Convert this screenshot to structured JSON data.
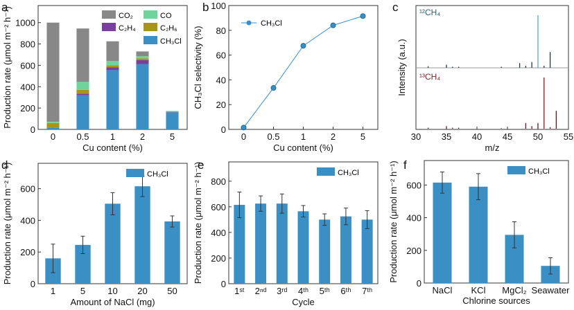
{
  "chart_data": [
    {
      "id": "a",
      "panel_label": "a",
      "type": "bar",
      "stacked": true,
      "categories": [
        "0",
        "0.5",
        "1",
        "2",
        "5"
      ],
      "xlabel": "Cu content (%)",
      "ylabel": "Production rate (μmol m⁻² h⁻¹)",
      "ylim": [
        0,
        1160
      ],
      "yticks": [
        0,
        200,
        400,
        600,
        800,
        1000
      ],
      "legend_position": "top-right",
      "series": [
        {
          "name": "CH₃Cl",
          "color": "#3a8fc4",
          "values": [
            15,
            320,
            555,
            610,
            160
          ]
        },
        {
          "name": "C₂H₄",
          "color": "#7a3f9e",
          "values": [
            0,
            15,
            25,
            40,
            2
          ]
        },
        {
          "name": "C₂H₆",
          "color": "#a89418",
          "values": [
            45,
            35,
            20,
            15,
            3
          ]
        },
        {
          "name": "CO",
          "color": "#6fd39c",
          "values": [
            12,
            75,
            40,
            20,
            8
          ]
        },
        {
          "name": "CO₂",
          "color": "#888888",
          "values": [
            928,
            500,
            185,
            45,
            0
          ]
        }
      ]
    },
    {
      "id": "b",
      "panel_label": "b",
      "type": "line",
      "categories": [
        "0",
        "0.5",
        "1",
        "2",
        "5"
      ],
      "xlabel": "Cu content (%)",
      "ylabel": "CH₃Cl selectivity (%)",
      "ylim": [
        0,
        100
      ],
      "yticks": [
        0,
        20,
        40,
        60,
        80,
        100
      ],
      "legend_position": "top-left",
      "series": [
        {
          "name": "CH₃Cl",
          "color": "#3a8fc4",
          "values": [
            1.5,
            33.5,
            67.5,
            84,
            91.5
          ]
        }
      ]
    },
    {
      "id": "c",
      "panel_label": "c",
      "type": "bar",
      "xlabel": "m/z",
      "ylabel": "Intensity (a.u.)",
      "xlim": [
        30,
        55
      ],
      "xticks": [
        30,
        35,
        40,
        45,
        50,
        55
      ],
      "series": [
        {
          "name": "¹²CH₄",
          "color": "#2f5f6a",
          "peak_color": "#1d3a44",
          "main_color": "#5aa9b8",
          "x": [
            32,
            35,
            36,
            37,
            44,
            47,
            48,
            49,
            50,
            51,
            52
          ],
          "values": [
            0.03,
            0.06,
            0.02,
            0.02,
            0.02,
            0.09,
            0.04,
            0.11,
            1.0,
            0.04,
            0.3
          ]
        },
        {
          "name": "¹³CH₄",
          "color": "#7a2430",
          "peak_color": "#5a1822",
          "main_color": "#7a1e28",
          "x": [
            32,
            35,
            36,
            37,
            44,
            48,
            49,
            50,
            51,
            52,
            53
          ],
          "values": [
            0.02,
            0.05,
            0.02,
            0.02,
            0.01,
            0.11,
            0.05,
            0.11,
            1.0,
            0.03,
            0.35
          ]
        }
      ]
    },
    {
      "id": "d",
      "panel_label": "d",
      "type": "bar",
      "categories": [
        "1",
        "5",
        "10",
        "20",
        "50"
      ],
      "xlabel": "Amount of NaCl (mg)",
      "ylabel": "Production rate (μmol m⁻² h⁻¹)",
      "ylim": [
        0,
        760
      ],
      "yticks": [
        0,
        200,
        400,
        600
      ],
      "legend_position": "top-right",
      "series": [
        {
          "name": "CH₃Cl",
          "color": "#3a8fc4",
          "values": [
            160,
            245,
            505,
            615,
            393
          ],
          "errors": [
            90,
            55,
            70,
            65,
            35
          ]
        }
      ]
    },
    {
      "id": "e",
      "panel_label": "e",
      "type": "bar",
      "categories": [
        "1ˢᵗ",
        "2ⁿᵈ",
        "3ʳᵈ",
        "4ᵗʰ",
        "5ᵗʰ",
        "6ᵗʰ",
        "7ᵗʰ"
      ],
      "xlabel": "Cycle",
      "ylabel": "Production rate (μmol m⁻² h⁻¹)",
      "ylim": [
        0,
        950
      ],
      "yticks": [
        0,
        200,
        400,
        600,
        800
      ],
      "legend_position": "top-right",
      "series": [
        {
          "name": "CH₃Cl",
          "color": "#3a8fc4",
          "values": [
            615,
            625,
            625,
            565,
            500,
            525,
            500
          ],
          "errors": [
            100,
            60,
            75,
            45,
            45,
            65,
            70
          ]
        }
      ]
    },
    {
      "id": "f",
      "panel_label": "f",
      "type": "bar",
      "categories": [
        "NaCl",
        "KCl",
        "MgCl₂",
        "Seawater"
      ],
      "xlabel": "Chlorine sources",
      "ylabel": "Production rate (μmol m⁻² h⁻¹)",
      "ylim": [
        0,
        750
      ],
      "yticks": [
        0,
        200,
        400,
        600
      ],
      "legend_position": "top-right",
      "series": [
        {
          "name": "CH₃Cl",
          "color": "#3a8fc4",
          "values": [
            615,
            590,
            295,
            105
          ],
          "errors": [
            65,
            80,
            80,
            50
          ]
        }
      ]
    }
  ]
}
